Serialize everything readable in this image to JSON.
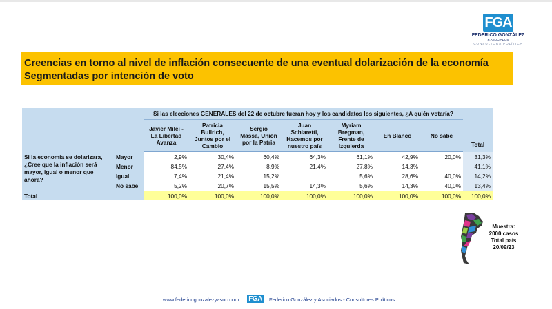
{
  "logo": {
    "mark": "FGA",
    "name": "FEDERICO GONZÁLEZ",
    "sub1": "& ASOCIADOS",
    "sub2": "CONSULTORA POLÍTICA"
  },
  "banner": {
    "title": "Creencias en torno al nivel de inflación consecuente de una eventual dolarización de la economía",
    "subtitle": "Segmentadas por intención de voto"
  },
  "table": {
    "header": "Si las elecciones GENERALES del 22 de octubre fueran hoy y los candidatos los siguientes, ¿A quién votaría?",
    "candidates": [
      [
        "Javier Milei -",
        "La Libertad",
        "Avanza"
      ],
      [
        "Patricia",
        "Bullrich,",
        "Juntos por el",
        "Cambio"
      ],
      [
        "Sergio",
        "Massa, Unión",
        "por la Patria"
      ],
      [
        "Juan",
        "Schiaretti,",
        "Hacemos por",
        "nuestro país"
      ],
      [
        "Myriam",
        "Bregman,",
        "Frente de",
        "Izquierda"
      ],
      [
        "En Blanco"
      ],
      [
        "No sabe"
      ]
    ],
    "total_label": "Total",
    "question": "Si la economía se dolarizara, ¿Cree que la inflación será mayor, igual o menor que ahora?",
    "rows": [
      {
        "label": "Mayor",
        "values": [
          "2,9%",
          "30,4%",
          "60,4%",
          "64,3%",
          "61,1%",
          "42,9%",
          "20,0%"
        ],
        "total": "31,3%"
      },
      {
        "label": "Menor",
        "values": [
          "84,5%",
          "27,4%",
          "8,9%",
          "21,4%",
          "27,8%",
          "14,3%",
          ""
        ],
        "total": "41,1%"
      },
      {
        "label": "Igual",
        "values": [
          "7,4%",
          "21,4%",
          "15,2%",
          "",
          "5,6%",
          "28,6%",
          "40,0%"
        ],
        "total": "14,2%"
      },
      {
        "label": "No sabe",
        "values": [
          "5,2%",
          "20,7%",
          "15,5%",
          "14,3%",
          "5,6%",
          "14,3%",
          "40,0%"
        ],
        "total": "13,4%"
      }
    ],
    "totals_row": {
      "label": "Total",
      "values": [
        "100,0%",
        "100,0%",
        "100,0%",
        "100,0%",
        "100,0%",
        "100,0%",
        "100,0%"
      ],
      "total": "100,0%"
    }
  },
  "sample": {
    "line1": "Muestra:",
    "line2": "2000 casos",
    "line3": "Total país",
    "line4": "20/09/23"
  },
  "footer": {
    "url": "www.federicogonzalezyasoc.com",
    "logo": "FGA",
    "name": "Federico González y Asociados - Consultores Políticos"
  },
  "colors": {
    "banner": "#fcc200",
    "header_blue": "#c6dcef",
    "total_yellow": "#ffff99",
    "brand_blue": "#1f8fcf"
  }
}
